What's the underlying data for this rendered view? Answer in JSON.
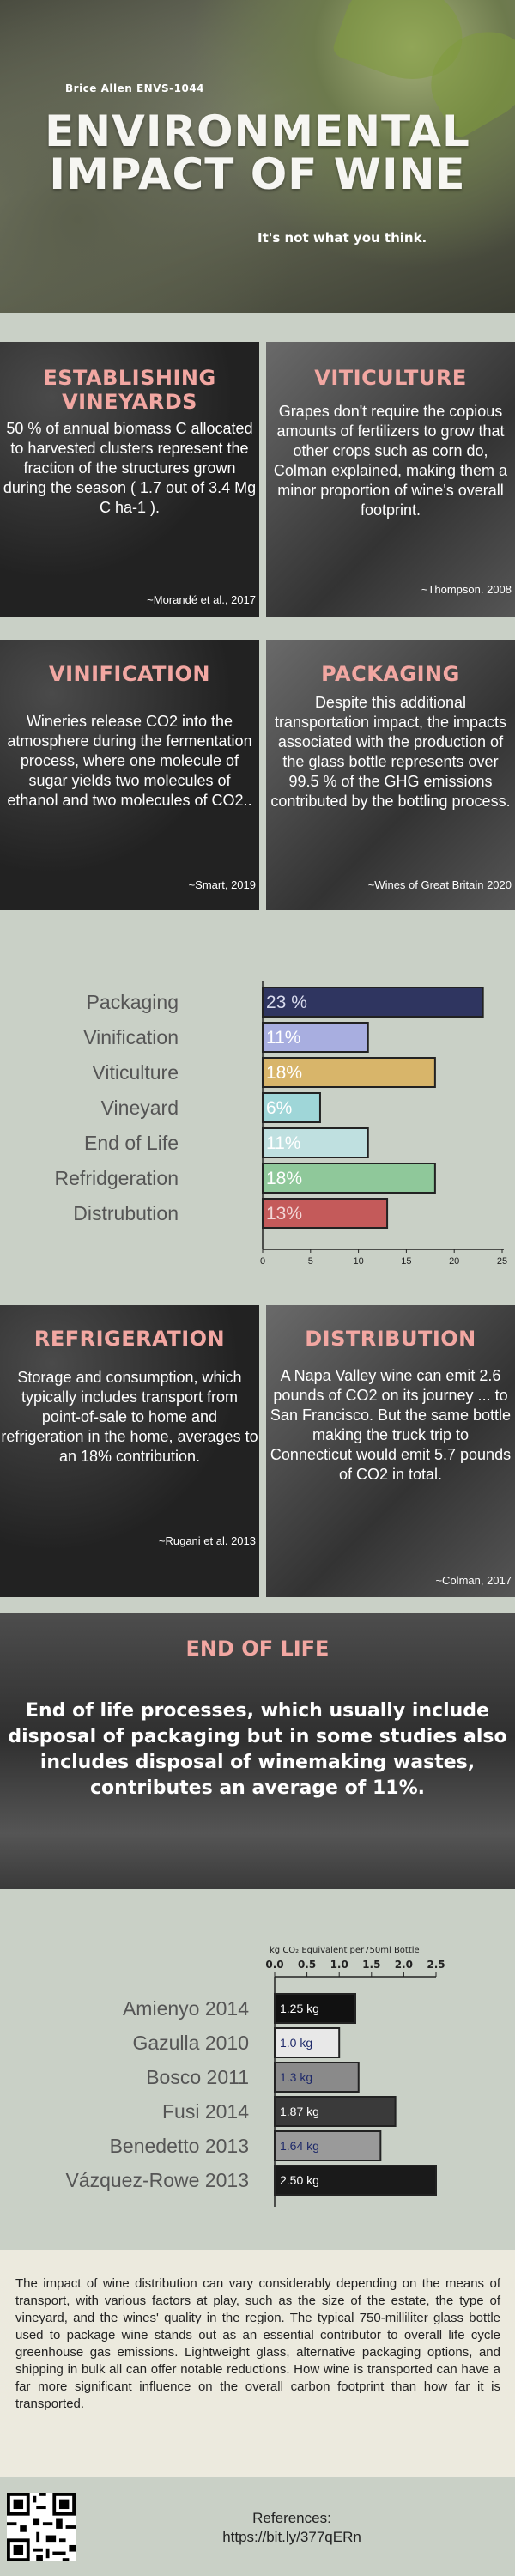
{
  "hero": {
    "author": "Brice Allen ENVS-1044",
    "title_line1": "ENVIRONMENTAL",
    "title_line2": "IMPACT OF WINE",
    "subtitle": "It's not what you think."
  },
  "panels": {
    "vineyards": {
      "title": "ESTABLISHING VINEYARDS",
      "body": "50 % of annual biomass C allocated to harvested clusters represent the fraction of the structures grown during the season ( 1.7 out of 3.4 Mg C ha-1 ).",
      "cite": "~Morandé et al., 2017"
    },
    "viticulture": {
      "title": "VITICULTURE",
      "body": "Grapes don't require the copious amounts of fertilizers to grow that other crops such as corn do, Colman explained, making them a minor proportion of wine's overall footprint.",
      "cite": "~Thompson. 2008"
    },
    "vinification": {
      "title": "VINIFICATION",
      "body": "Wineries release CO2 into the atmosphere during the fermentation process, where one molecule of sugar yields two molecules of ethanol and two molecules of CO2..",
      "cite": "~Smart, 2019"
    },
    "packaging": {
      "title": "PACKAGING",
      "body": "Despite this additional transportation impact, the impacts associated with the production of the glass bottle represents over 99.5 % of the GHG emissions contributed by the bottling process.",
      "cite": "~Wines of Great Britain 2020"
    },
    "refrigeration": {
      "title": "REFRIGERATION",
      "body": "Storage and consumption, which typically includes transport from point-of-sale to home and refrigeration in the home, averages to an 18% contribution.",
      "cite": "~Rugani et al. 2013"
    },
    "distribution": {
      "title": "DISTRIBUTION",
      "body": "A Napa Valley wine can emit 2.6 pounds of CO2 on its journey ... to San Francisco. But the same bottle making the truck trip to Connecticut would emit 5.7 pounds of CO2 in total.",
      "cite": "~Colman, 2017"
    }
  },
  "end_of_life": {
    "title": "END OF LIFE",
    "text": "End of life processes, which usually include disposal of packaging but in some studies also includes disposal of winemaking wastes, contributes an average of 11%."
  },
  "summary": "The impact of wine distribution can vary considerably depending on the means of transport, with various factors at play, such as the size of the estate, the type of vineyard, and the wines' quality in the region. The typical 750-milliliter glass bottle used to package wine stands out as an essential contributor to overall life cycle greenhouse gas emissions. Lightweight glass, alternative packaging options, and shipping in bulk all can offer notable reductions. How wine is transported can have a far more significant influence on the overall carbon footprint than how far it is transported.",
  "references": {
    "label": "References:",
    "url": "https://bit.ly/377qERn"
  },
  "chart_data": [
    {
      "type": "bar",
      "orientation": "horizontal",
      "categories": [
        "Packaging",
        "Vinification",
        "Viticulture",
        "Vineyard",
        "End of Life",
        "Refridgeration",
        "Distrubution"
      ],
      "values": [
        23,
        11,
        18,
        6,
        11,
        18,
        13
      ],
      "value_labels": [
        "23 %",
        "11%",
        "18%",
        "6%",
        "11%",
        "18%",
        "13%"
      ],
      "colors": [
        "#2f3560",
        "#a8aee0",
        "#d8b56a",
        "#9fd6d8",
        "#bfe0e0",
        "#8fc89a",
        "#c45a5a"
      ],
      "xlim": [
        0,
        25
      ],
      "xticks": [
        "0",
        "5",
        "10",
        "15",
        "20",
        "25"
      ],
      "grid": false
    },
    {
      "type": "bar",
      "orientation": "horizontal",
      "title": "kg CO₂ Equivalent per750ml Bottle",
      "categories": [
        "Amienyo 2014",
        "Gazulla 2010",
        "Bosco 2011",
        "Fusi 2014",
        "Benedetto 2013",
        "Vázquez-Rowe 2013"
      ],
      "values": [
        1.25,
        1.0,
        1.3,
        1.87,
        1.64,
        2.5
      ],
      "value_labels": [
        "1.25 kg",
        "1.0 kg",
        "1.3 kg",
        "1.87 kg",
        "1.64 kg",
        "2.50 kg"
      ],
      "colors": [
        "#111111",
        "#e8e8e8",
        "#8a8a8a",
        "#3a3a3a",
        "#9a9a9a",
        "#1a1a1a"
      ],
      "label_colors": [
        "#ffffff",
        "#1f2a6a",
        "#1f2a6a",
        "#ffffff",
        "#1f2a6a",
        "#ffffff"
      ],
      "xlim": [
        0,
        2.5
      ],
      "xticks": [
        "0.0",
        "0.5",
        "1.0",
        "1.5",
        "2.0",
        "2.5"
      ],
      "grid": false
    }
  ]
}
